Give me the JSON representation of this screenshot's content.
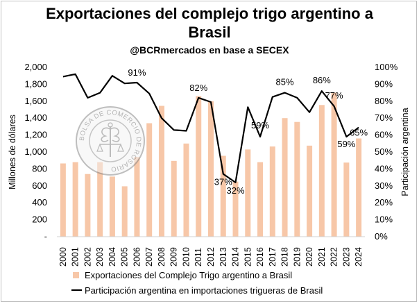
{
  "chart_data": {
    "type": "bar",
    "title": "Exportaciones del complejo trigo argentino a Brasil",
    "subtitle": "@BCRmercados en base a SECEX",
    "ylabel": "Millones de dólares",
    "y2label": "Participación argentina",
    "ylim": [
      0,
      2000
    ],
    "y2lim": [
      0,
      100
    ],
    "yticks": [
      "-",
      "200",
      "400",
      "600",
      "800",
      "1,000",
      "1,200",
      "1,400",
      "1,600",
      "1,800",
      "2,000"
    ],
    "y2ticks": [
      "0%",
      "10%",
      "20%",
      "30%",
      "40%",
      "50%",
      "60%",
      "70%",
      "80%",
      "90%",
      "100%"
    ],
    "categories": [
      "2000",
      "2001",
      "2002",
      "2003",
      "2004",
      "2005",
      "2006",
      "2007",
      "2008",
      "2009",
      "2010",
      "2011",
      "2012",
      "2013",
      "2014",
      "2015",
      "2016",
      "2017",
      "2018",
      "2019",
      "2020",
      "2021",
      "2022",
      "2023",
      "2024"
    ],
    "series": [
      {
        "name": "Exportaciones del Complejo Trigo argentino a Brasil",
        "type": "bar",
        "axis": "left",
        "color": "#f7c7a8",
        "values": [
          865,
          880,
          740,
          880,
          710,
          595,
          940,
          1340,
          1545,
          895,
          1100,
          1660,
          1600,
          955,
          650,
          1030,
          880,
          1065,
          1400,
          1355,
          1075,
          1555,
          1700,
          875,
          1160
        ]
      },
      {
        "name": "Participación argentina en importaciones trigueras de Brasil",
        "type": "line",
        "axis": "right",
        "color": "#000000",
        "values": [
          94.5,
          96,
          82,
          85,
          95,
          90.5,
          91,
          84.5,
          70,
          63,
          62.5,
          82,
          79.5,
          37,
          32,
          76.5,
          59,
          82.5,
          85,
          82,
          73.5,
          86,
          77,
          59,
          64.5
        ]
      }
    ],
    "data_labels": [
      {
        "index": 6,
        "text": "91%"
      },
      {
        "index": 11,
        "text": "82%"
      },
      {
        "index": 13,
        "text": "37%"
      },
      {
        "index": 14,
        "text": "32%"
      },
      {
        "index": 16,
        "text": "59%"
      },
      {
        "index": 18,
        "text": "85%"
      },
      {
        "index": 21,
        "text": "86%"
      },
      {
        "index": 22,
        "text": "77%"
      },
      {
        "index": 23,
        "text": "59%"
      },
      {
        "index": 24,
        "text": "65%"
      }
    ],
    "legend": "bottom",
    "grid": false,
    "watermark_text": "BOLSA DE COMERCIO DE ROSARIO"
  }
}
